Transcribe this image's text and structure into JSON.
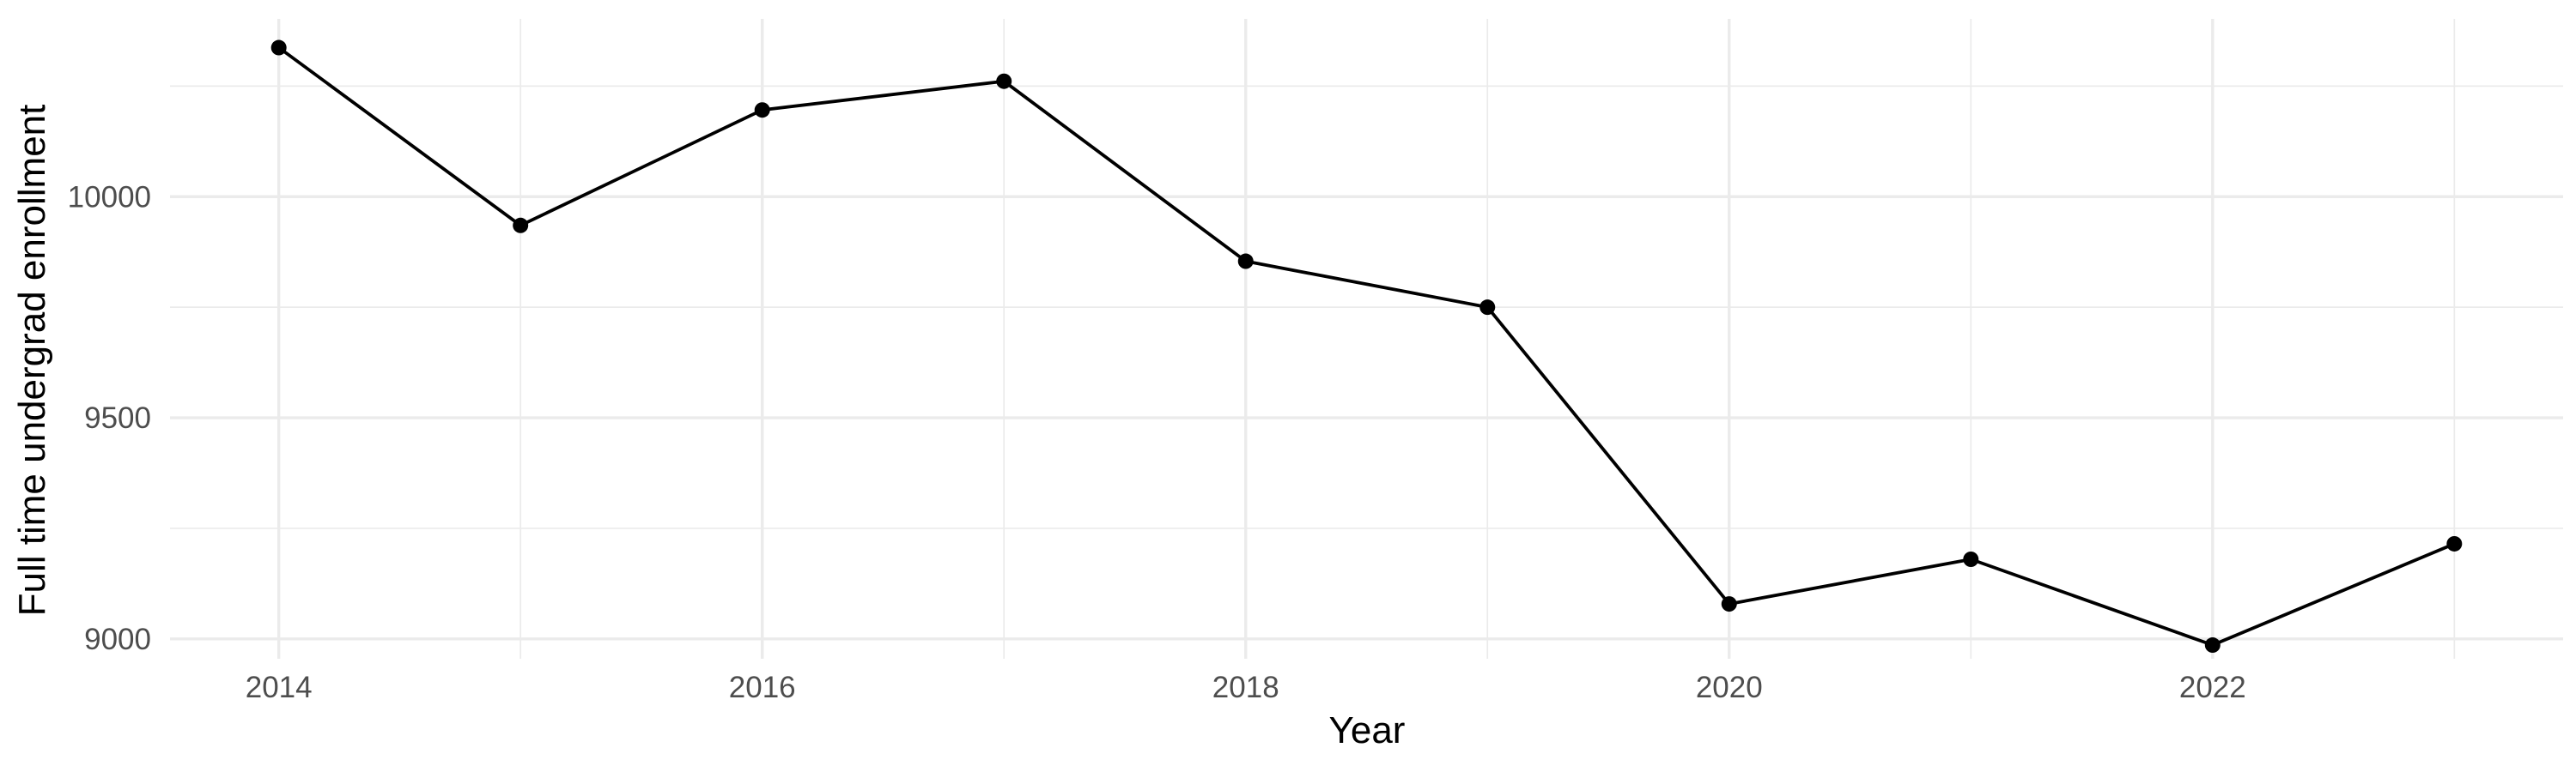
{
  "chart_data": {
    "type": "line",
    "title": "",
    "xlabel": "Year",
    "ylabel": "Full time undergrad enrollment",
    "x": [
      2014,
      2015,
      2016,
      2017,
      2018,
      2019,
      2020,
      2021,
      2022,
      2023
    ],
    "series": [
      {
        "values": [
          10337,
          9935,
          10196,
          10261,
          9854,
          9750,
          9079,
          9180,
          8986,
          9215
        ],
        "color": "#000000"
      }
    ],
    "xlim": [
      2013.55,
      2023.45
    ],
    "ylim": [
      8955,
      10402
    ],
    "x_ticks": [
      2014,
      2016,
      2018,
      2020,
      2022
    ],
    "x_tick_labels": [
      "2014",
      "2016",
      "2018",
      "2020",
      "2022"
    ],
    "y_ticks": [
      9000,
      9500,
      10000
    ],
    "y_tick_labels": [
      "9000",
      "9500",
      "10000"
    ],
    "grid": true,
    "markers": true,
    "legend": "none"
  }
}
